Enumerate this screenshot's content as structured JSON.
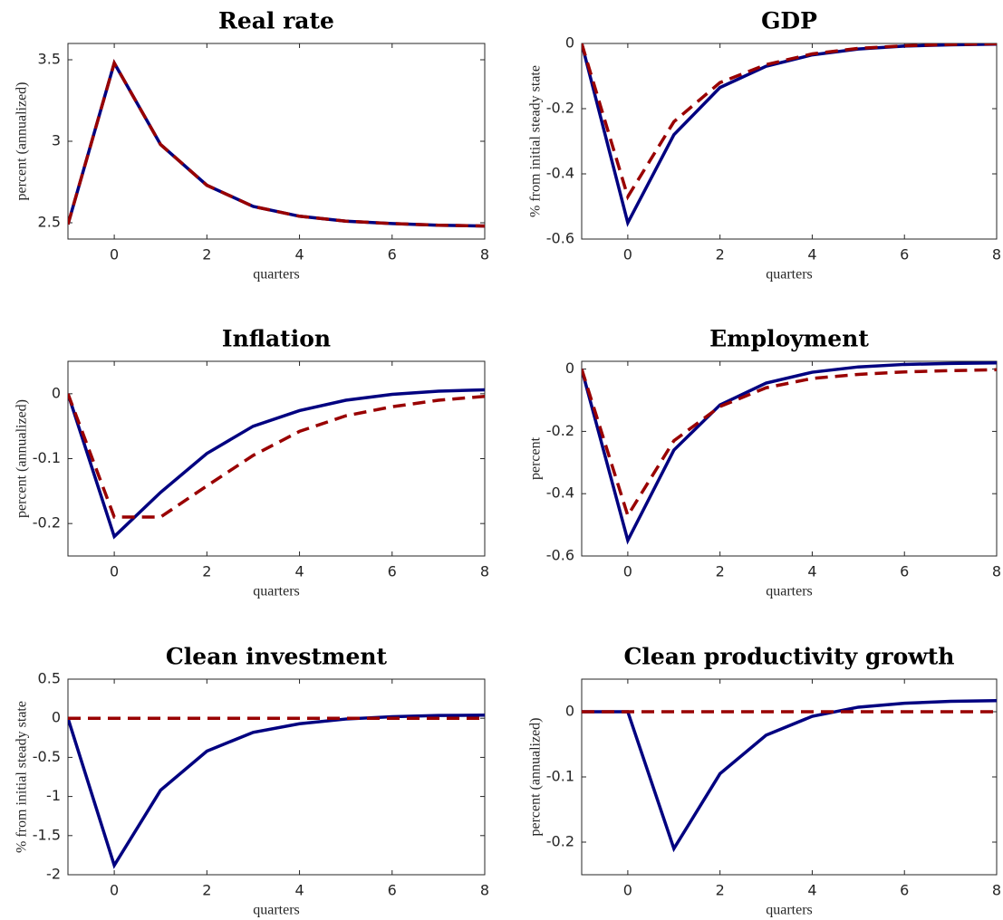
{
  "chart_data": [
    {
      "type": "line",
      "title": "Real rate",
      "ylabel": "percent (annualized)",
      "xlabel": "quarters",
      "x": [
        -1,
        0,
        1,
        2,
        3,
        4,
        5,
        6,
        7,
        8
      ],
      "xlim": [
        -1,
        8
      ],
      "xticks": [
        0,
        2,
        4,
        6,
        8
      ],
      "ylim": [
        2.4,
        3.6
      ],
      "yticks": [
        2.5,
        3,
        3.5
      ],
      "grid": false,
      "series": [
        {
          "color": "#000080",
          "line_style": "solid",
          "values": [
            2.49,
            3.48,
            2.98,
            2.73,
            2.6,
            2.54,
            2.51,
            2.495,
            2.485,
            2.48
          ]
        },
        {
          "color": "#990000",
          "line_style": "dashed",
          "values": [
            2.49,
            3.48,
            2.98,
            2.73,
            2.6,
            2.54,
            2.51,
            2.495,
            2.485,
            2.48
          ]
        }
      ]
    },
    {
      "type": "line",
      "title": "GDP",
      "ylabel": "% from initial steady state",
      "xlabel": "quarters",
      "x": [
        -1,
        0,
        1,
        2,
        3,
        4,
        5,
        6,
        7,
        8
      ],
      "xlim": [
        -1,
        8
      ],
      "xticks": [
        0,
        2,
        4,
        6,
        8
      ],
      "ylim": [
        -0.6,
        0
      ],
      "yticks": [
        -0.6,
        -0.4,
        -0.2,
        0
      ],
      "grid": false,
      "series": [
        {
          "color": "#000080",
          "line_style": "solid",
          "values": [
            0,
            -0.55,
            -0.28,
            -0.135,
            -0.07,
            -0.035,
            -0.017,
            -0.008,
            -0.004,
            -0.002
          ]
        },
        {
          "color": "#990000",
          "line_style": "dashed",
          "values": [
            0,
            -0.47,
            -0.24,
            -0.12,
            -0.065,
            -0.032,
            -0.015,
            -0.007,
            -0.003,
            -0.001
          ]
        }
      ]
    },
    {
      "type": "line",
      "title": "Inflation",
      "ylabel": "percent (annualized)",
      "xlabel": "quarters",
      "x": [
        -1,
        0,
        1,
        2,
        3,
        4,
        5,
        6,
        7,
        8
      ],
      "xlim": [
        -1,
        8
      ],
      "xticks": [
        0,
        2,
        4,
        6,
        8
      ],
      "ylim": [
        -0.25,
        0.05
      ],
      "yticks": [
        -0.2,
        -0.1,
        0
      ],
      "grid": false,
      "series": [
        {
          "color": "#000080",
          "line_style": "solid",
          "values": [
            0,
            -0.22,
            -0.152,
            -0.092,
            -0.05,
            -0.026,
            -0.01,
            -0.001,
            0.004,
            0.006
          ]
        },
        {
          "color": "#990000",
          "line_style": "dashed",
          "values": [
            0,
            -0.19,
            -0.19,
            -0.142,
            -0.095,
            -0.058,
            -0.034,
            -0.02,
            -0.01,
            -0.004
          ]
        }
      ]
    },
    {
      "type": "line",
      "title": "Employment",
      "ylabel": "percent",
      "xlabel": "quarters",
      "x": [
        -1,
        0,
        1,
        2,
        3,
        4,
        5,
        6,
        7,
        8
      ],
      "xlim": [
        -1,
        8
      ],
      "xticks": [
        0,
        2,
        4,
        6,
        8
      ],
      "ylim": [
        -0.6,
        0.025
      ],
      "yticks": [
        -0.6,
        -0.4,
        -0.2,
        0
      ],
      "grid": false,
      "series": [
        {
          "color": "#000080",
          "line_style": "solid",
          "values": [
            0,
            -0.55,
            -0.26,
            -0.115,
            -0.045,
            -0.01,
            0.007,
            0.015,
            0.018,
            0.02
          ]
        },
        {
          "color": "#990000",
          "line_style": "dashed",
          "values": [
            0,
            -0.47,
            -0.23,
            -0.12,
            -0.06,
            -0.03,
            -0.017,
            -0.009,
            -0.005,
            -0.002
          ]
        }
      ]
    },
    {
      "type": "line",
      "title": "Clean investment",
      "ylabel": "% from initial steady state",
      "xlabel": "quarters",
      "x": [
        -1,
        0,
        1,
        2,
        3,
        4,
        5,
        6,
        7,
        8
      ],
      "xlim": [
        -1,
        8
      ],
      "xticks": [
        0,
        2,
        4,
        6,
        8
      ],
      "ylim": [
        -2,
        0.5
      ],
      "yticks": [
        -2,
        -1.5,
        -1,
        -0.5,
        0,
        0.5
      ],
      "grid": false,
      "series": [
        {
          "color": "#000080",
          "line_style": "solid",
          "values": [
            0,
            -1.88,
            -0.92,
            -0.42,
            -0.18,
            -0.07,
            -0.01,
            0.02,
            0.035,
            0.04
          ]
        },
        {
          "color": "#990000",
          "line_style": "dashed",
          "values": [
            0,
            0,
            0,
            0,
            0,
            0,
            0,
            0,
            0,
            0
          ]
        }
      ]
    },
    {
      "type": "line",
      "title": "Clean productivity growth",
      "ylabel": "percent (annualized)",
      "xlabel": "quarters",
      "x": [
        -1,
        0,
        1,
        2,
        3,
        4,
        5,
        6,
        7,
        8
      ],
      "xlim": [
        -1,
        8
      ],
      "xticks": [
        0,
        2,
        4,
        6,
        8
      ],
      "ylim": [
        -0.25,
        0.05
      ],
      "yticks": [
        -0.2,
        -0.1,
        0
      ],
      "grid": false,
      "series": [
        {
          "color": "#000080",
          "line_style": "solid",
          "values": [
            0,
            0,
            -0.21,
            -0.095,
            -0.036,
            -0.007,
            0.007,
            0.013,
            0.016,
            0.017
          ]
        },
        {
          "color": "#990000",
          "line_style": "dashed",
          "values": [
            0,
            0,
            0,
            0,
            0,
            0,
            0,
            0,
            0,
            0
          ]
        }
      ]
    }
  ]
}
